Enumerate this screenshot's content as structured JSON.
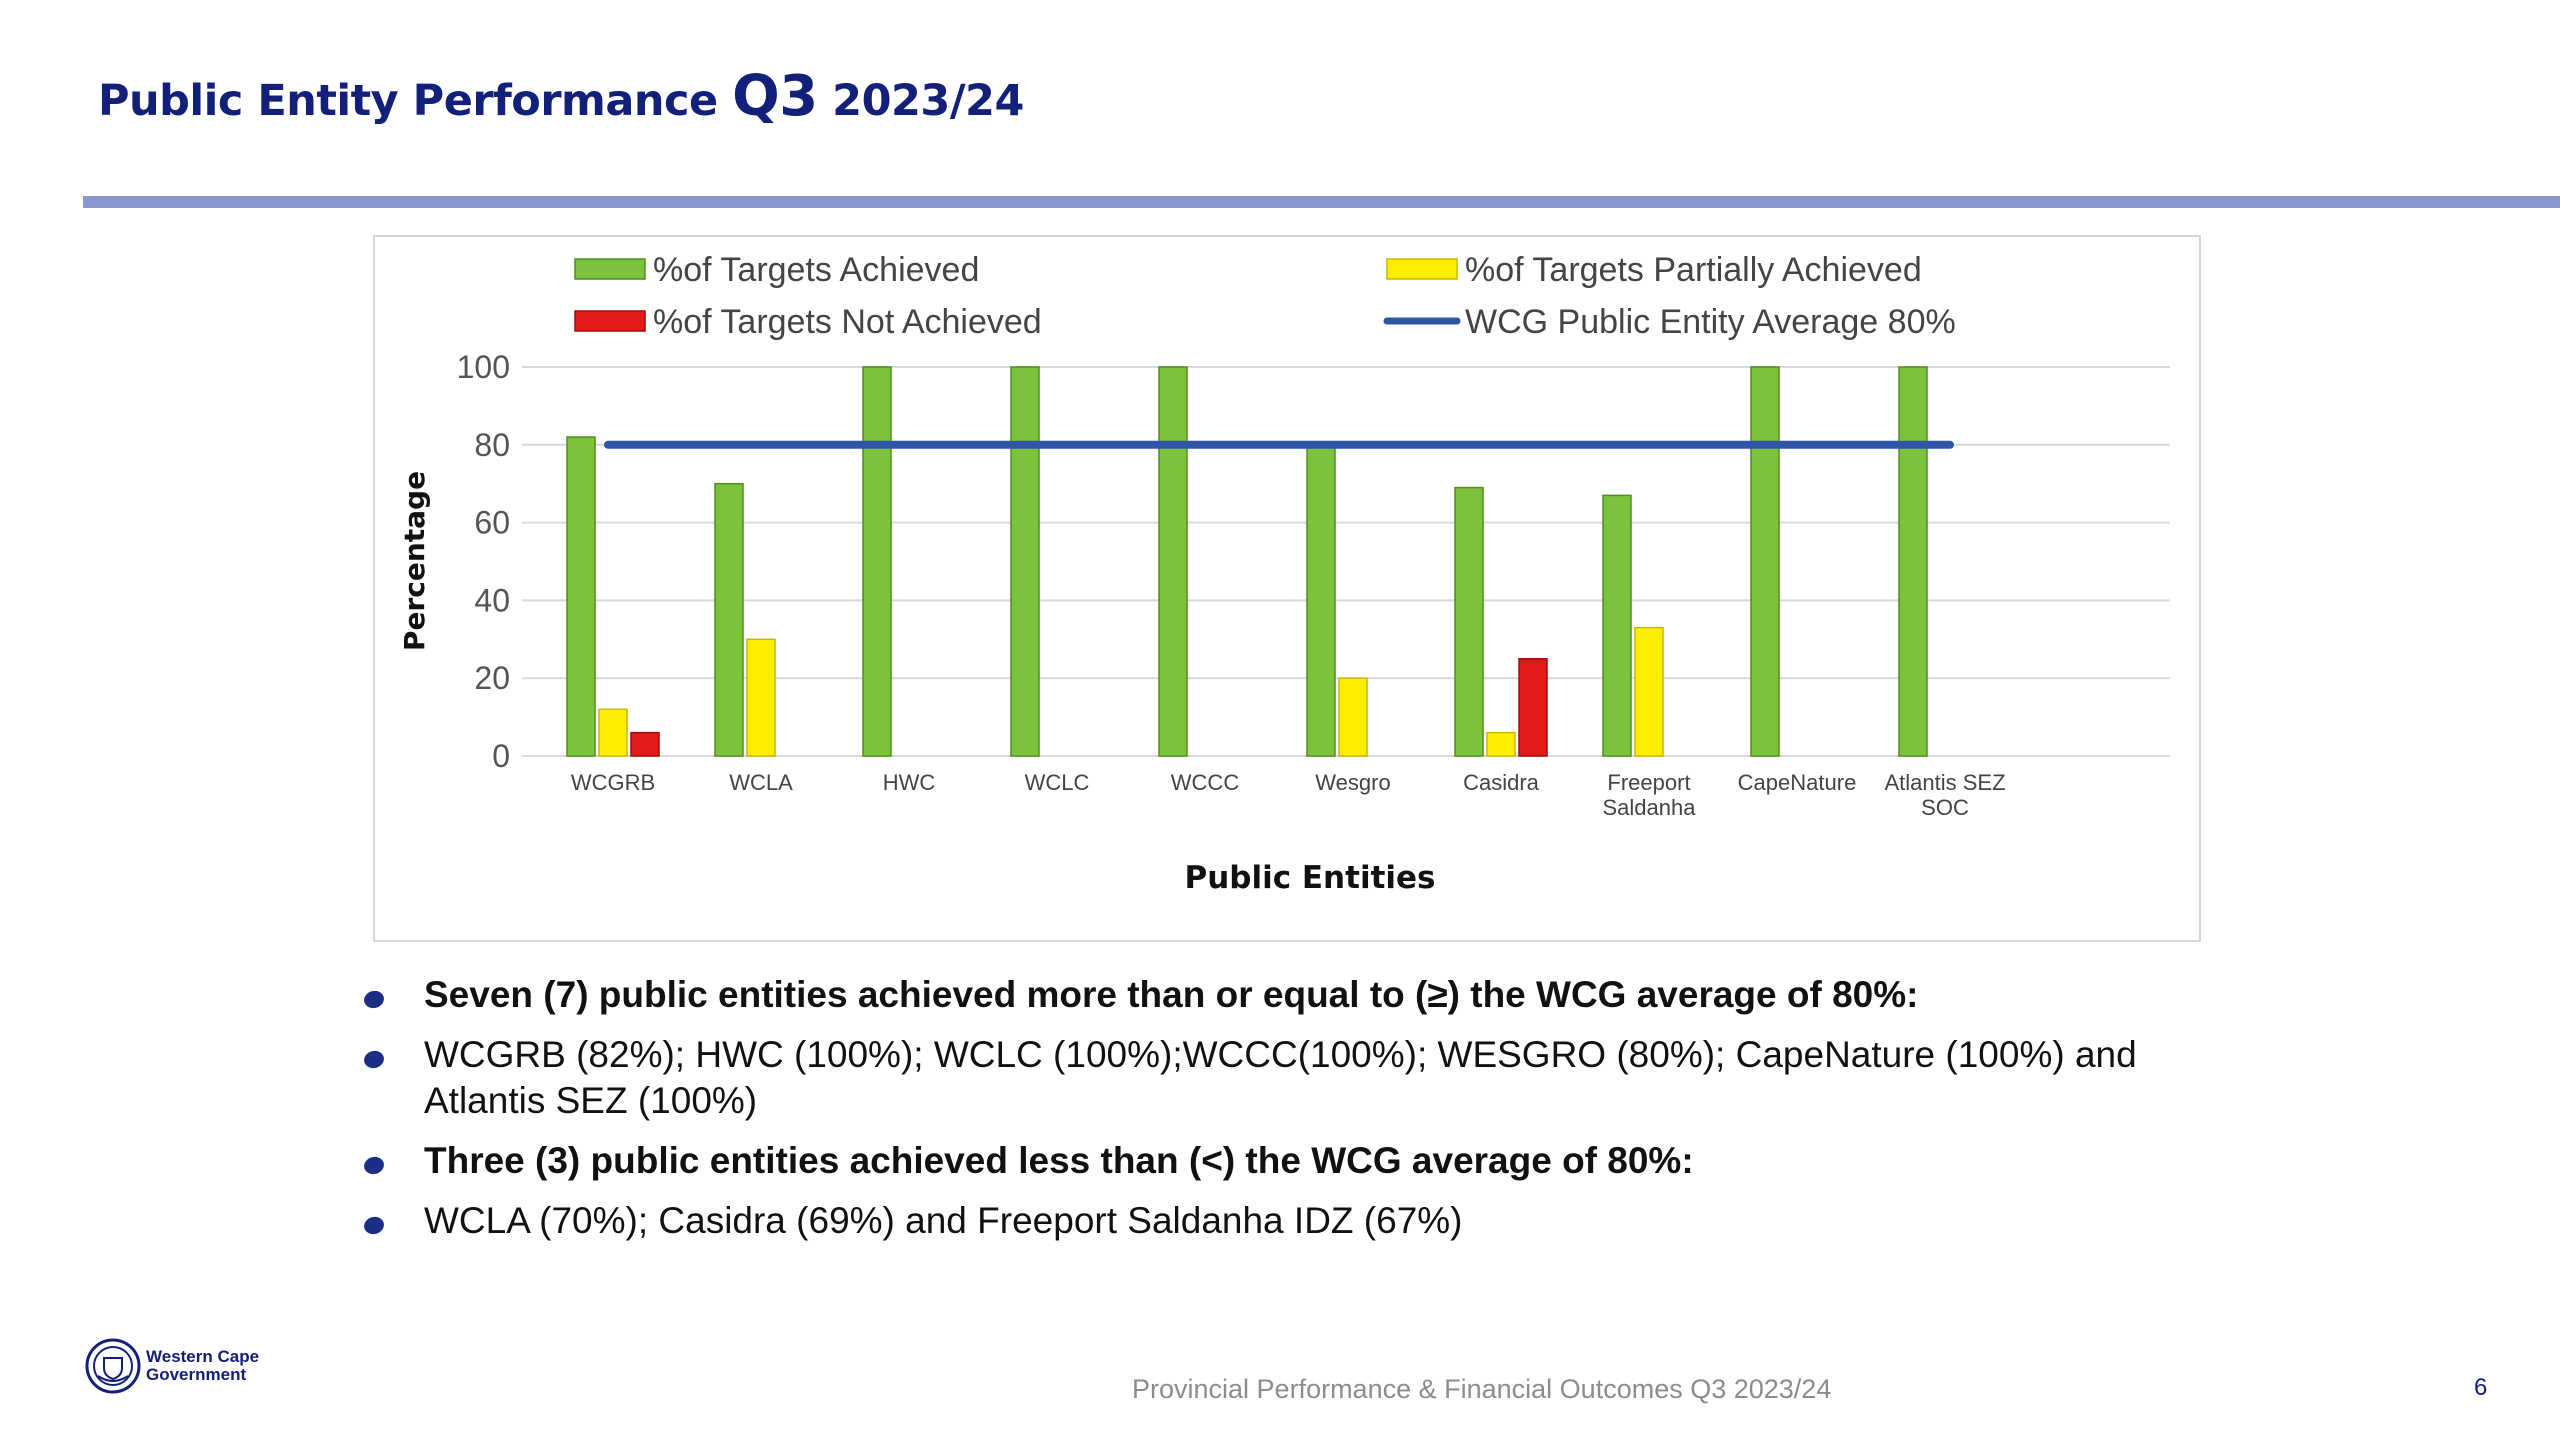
{
  "title": {
    "main": "Public Entity Performance",
    "quarter": "Q3",
    "year": "2023/24"
  },
  "colors": {
    "title": "#13207a",
    "rule": "#8d97cf",
    "achieved": "#7cc23a",
    "partial": "#ffee00",
    "not_achieved": "#e21a1a",
    "average_line": "#2f56a6"
  },
  "chart_data": {
    "type": "bar",
    "xlabel": "Public Entities",
    "ylabel": "Percentage",
    "ylim": [
      0,
      100
    ],
    "yticks": [
      0,
      20,
      40,
      60,
      80,
      100
    ],
    "grid": true,
    "legend_position": "top",
    "categories": [
      "WCGRB",
      "WCLA",
      "HWC",
      "WCLC",
      "WCCC",
      "Wesgro",
      "Casidra",
      "Freeport Saldanha",
      "CapeNature",
      "Atlantis SEZ SOC"
    ],
    "category_lines": [
      [
        "WCGRB"
      ],
      [
        "WCLA"
      ],
      [
        "HWC"
      ],
      [
        "WCLC"
      ],
      [
        "WCCC"
      ],
      [
        "Wesgro"
      ],
      [
        "Casidra"
      ],
      [
        "Freeport",
        "Saldanha"
      ],
      [
        "CapeNature"
      ],
      [
        "Atlantis SEZ",
        "SOC"
      ]
    ],
    "series": [
      {
        "name": "%of Targets Achieved",
        "key": "achieved",
        "values": [
          82,
          70,
          100,
          100,
          100,
          80,
          69,
          67,
          100,
          100
        ]
      },
      {
        "name": "%of Targets Partially Achieved",
        "key": "partial",
        "values": [
          12,
          30,
          null,
          null,
          null,
          20,
          6,
          33,
          null,
          null
        ]
      },
      {
        "name": "%of Targets Not Achieved",
        "key": "not_achieved",
        "values": [
          6,
          null,
          null,
          null,
          null,
          null,
          25,
          null,
          null,
          null
        ]
      }
    ],
    "reference_line": {
      "name": "WCG  Public Entity Average 80%",
      "value": 80
    }
  },
  "bullets": [
    {
      "text": "Seven (7) public entities achieved more than or equal to (≥) the WCG average of 80%:",
      "bold": true
    },
    {
      "text": "WCGRB (82%); HWC (100%); WCLC (100%);WCCC(100%); WESGRO (80%); CapeNature (100%) and Atlantis SEZ (100%)",
      "bold": false
    },
    {
      "text": "Three (3) public entities achieved less than (<) the WCG average of 80%:",
      "bold": true
    },
    {
      "text": "WCLA (70%); Casidra (69%) and Freeport Saldanha IDZ (67%)",
      "bold": false
    }
  ],
  "footer": {
    "logo_line1": "Western Cape",
    "logo_line2": "Government",
    "text": "Provincial Performance & Financial Outcomes Q3 2023/24",
    "page_number": "6"
  }
}
